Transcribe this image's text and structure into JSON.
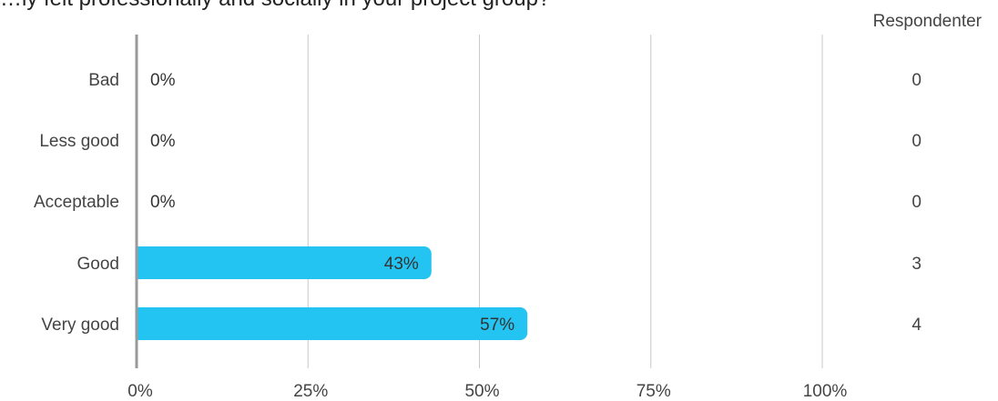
{
  "title": "…ly felt professionally and socially in your project group?",
  "respondents_header": "Respondenter",
  "chart_data": {
    "type": "bar",
    "orientation": "horizontal",
    "title": "…ly felt professionally and socially in your project group?",
    "xlabel": "",
    "ylabel": "",
    "xlim": [
      0,
      100
    ],
    "x_ticks": [
      "0%",
      "25%",
      "50%",
      "75%",
      "100%"
    ],
    "x_tick_values": [
      0,
      25,
      50,
      75,
      100
    ],
    "categories": [
      "Bad",
      "Less good",
      "Acceptable",
      "Good",
      "Very good"
    ],
    "values": [
      0,
      0,
      0,
      43,
      57
    ],
    "value_labels": [
      "0%",
      "0%",
      "0%",
      "43%",
      "57%"
    ],
    "respondents": [
      "0",
      "0",
      "0",
      "3",
      "4"
    ],
    "grid": true,
    "bar_color": "#23c4f2"
  }
}
